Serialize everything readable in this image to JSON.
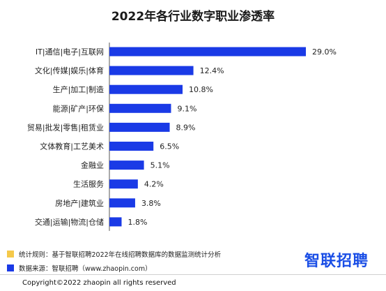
{
  "chart_data": {
    "type": "bar",
    "orientation": "horizontal",
    "title": "2022年各行业数字职业渗透率",
    "categories": [
      "IT|通信|电子|互联网",
      "文化|传媒|娱乐|体育",
      "生产|加工|制造",
      "能源|矿产|环保",
      "贸易|批发|零售|租赁业",
      "文体教育|工艺美术",
      "金融业",
      "生活服务",
      "房地产|建筑业",
      "交通|运输|物流|仓储"
    ],
    "values": [
      29.0,
      12.4,
      10.8,
      9.1,
      8.9,
      6.5,
      5.1,
      4.2,
      3.8,
      1.8
    ],
    "labels": [
      "29.0%",
      "12.4%",
      "10.8%",
      "9.1%",
      "8.9%",
      "6.5%",
      "5.1%",
      "4.2%",
      "3.8%",
      "1.8%"
    ],
    "xlim": [
      0,
      30
    ],
    "value_unit": "%",
    "bar_color": "#1a3ae6",
    "axis_line": "vertical line at left of bars",
    "grid": false,
    "legend": "none"
  },
  "notes": [
    {
      "text": "统计规则：基于智联招聘2022年在线招聘数据库的数据监测统计分析",
      "color": "#f5c94a"
    },
    {
      "text": "数据来源：智联招聘（www.zhaopin.com）",
      "color": "#1a3ae6"
    }
  ],
  "logo": {
    "text": "智联招聘",
    "color": "#1a4ee6"
  },
  "copyright": "Copyright©2022 zhaopin all rights reserved"
}
